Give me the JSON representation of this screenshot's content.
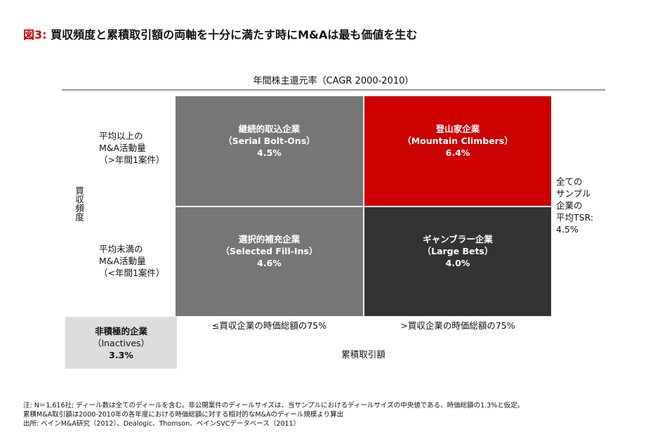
{
  "title": {
    "prefix": "図3:",
    "text": "買収頻度と累積取引額の両軸を十分に満たす時にM&Aは最も価値を生む"
  },
  "top_axis": "年間株主還元率（CAGR 2000-2010）",
  "y_axis": "買収頻度",
  "rows": [
    {
      "l1": "平均以上の",
      "l2": "M&A活動量",
      "l3": "（>年間1案件）"
    },
    {
      "l1": "平均未満の",
      "l2": "M&A活動量",
      "l3": "（<年間1案件）"
    }
  ],
  "quadrants": [
    {
      "name": "継続的取込企業",
      "en": "（Serial Bolt-Ons）",
      "value": "4.5%",
      "color": "#767676"
    },
    {
      "name": "登山家企業",
      "en": "（Mountain Climbers）",
      "value": "6.4%",
      "color": "#cc0000"
    },
    {
      "name": "選択的補充企業",
      "en": "（Selected Fill-Ins）",
      "value": "4.6%",
      "color": "#767676"
    },
    {
      "name": "ギャンブラー企業",
      "en": "（Large Bets）",
      "value": "4.0%",
      "color": "#333333"
    }
  ],
  "inactives": {
    "name": "非積極的企業",
    "en": "（Inactives）",
    "value": "3.3%",
    "color": "#dddddd"
  },
  "cols": [
    "≤買収企業の時価総額の75%",
    ">買収企業の時価総額の75%"
  ],
  "x_axis": "累積取引額",
  "avg": [
    "全ての",
    "サンプル",
    "企業の",
    "平均TSR:",
    "4.5%"
  ],
  "notes": [
    "注: N＝1,616社; ディール数は全てのディールを含む。非公開案件のディールサイズは、当サンプルにおけるディールサイズの中央値である、時価総額の1.3%と仮定。",
    "累積M&A取引額は2000-2010年の各年度における時価総額に対する相対的なM&Aのディール規模より算出",
    "出所: ベインM&A研究（2012）、Dealogic、Thomson、ベインSVCデータベース（2011）"
  ]
}
